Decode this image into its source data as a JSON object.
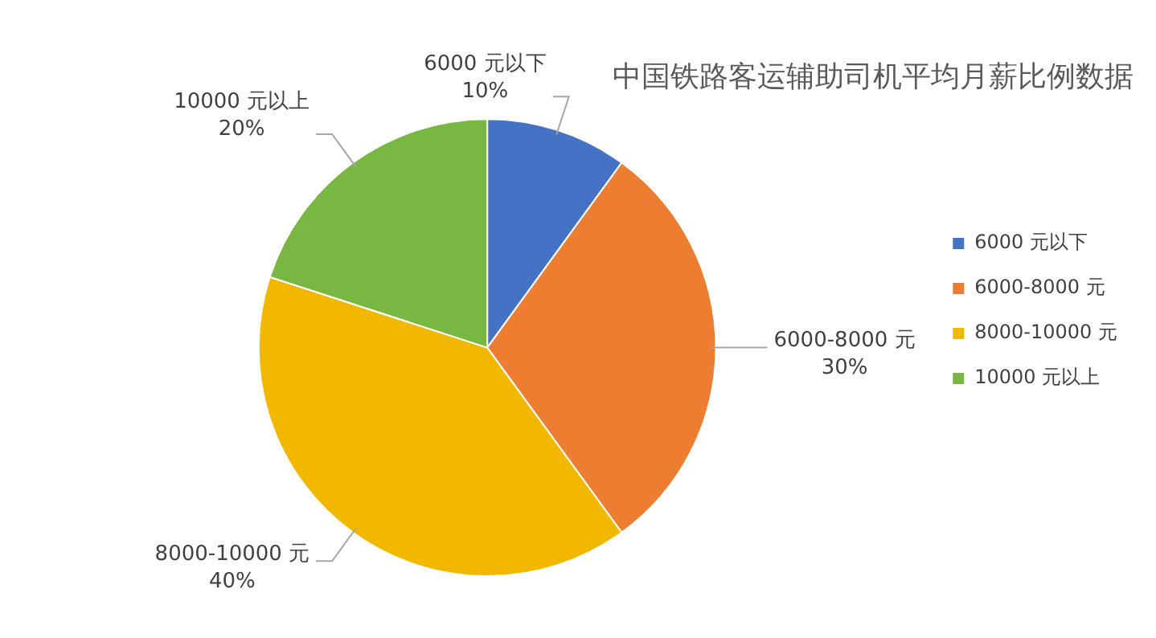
{
  "chart_data": {
    "type": "pie",
    "title": "中国铁路客运辅助司机平均月薪比例数据",
    "categories": [
      "6000 元以下",
      "6000-8000 元",
      "8000-10000 元",
      "10000 元以上"
    ],
    "values": [
      10,
      30,
      40,
      20
    ],
    "colors": [
      "#4472c4",
      "#ed7d31",
      "#f2b800",
      "#78b842"
    ],
    "value_labels": [
      "10%",
      "30%",
      "40%",
      "20%"
    ],
    "legend": "right"
  }
}
